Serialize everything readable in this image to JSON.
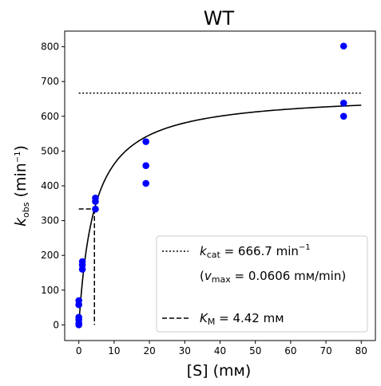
{
  "chart_data": {
    "type": "scatter",
    "title": "WT",
    "xlabel": "[S] (mм)",
    "ylabel": {
      "main": "k",
      "sub": "obs",
      "unit_open": " (min",
      "unit_sup": "−1",
      "unit_close": ")"
    },
    "xlim": [
      -4,
      84
    ],
    "ylim": [
      -45,
      845
    ],
    "x_ticks": [
      0,
      10,
      20,
      30,
      40,
      50,
      60,
      70,
      80
    ],
    "y_ticks": [
      0,
      100,
      200,
      300,
      400,
      500,
      600,
      700,
      800
    ],
    "grid": false,
    "legend_position": "lower right",
    "colors": {
      "points": "#0000ff",
      "lines": "#000000"
    },
    "points": [
      {
        "x": 0,
        "y": 0
      },
      {
        "x": 0,
        "y": 5
      },
      {
        "x": 0,
        "y": 15
      },
      {
        "x": 0,
        "y": 22
      },
      {
        "x": 0,
        "y": 58
      },
      {
        "x": 0,
        "y": 70
      },
      {
        "x": 1,
        "y": 160
      },
      {
        "x": 1,
        "y": 172
      },
      {
        "x": 1,
        "y": 182
      },
      {
        "x": 4.7,
        "y": 333
      },
      {
        "x": 4.7,
        "y": 355
      },
      {
        "x": 4.7,
        "y": 365
      },
      {
        "x": 19,
        "y": 407
      },
      {
        "x": 19,
        "y": 458
      },
      {
        "x": 19,
        "y": 527
      },
      {
        "x": 75,
        "y": 600
      },
      {
        "x": 75,
        "y": 638
      },
      {
        "x": 75,
        "y": 802
      }
    ],
    "fit": {
      "kcat": 666.7,
      "km": 4.42,
      "x_range": [
        0,
        80
      ]
    },
    "legend": [
      {
        "style": "dotted",
        "label_main": "k",
        "label_sub": "cat",
        "label_rest": " = 666.7 min",
        "label_sup": "−1"
      },
      {
        "style": "none",
        "label_open": "(",
        "label_main": "v",
        "label_sub": "max",
        "label_rest": " = 0.0606 mм/min)"
      },
      {
        "style": "dashed",
        "label_main": "K",
        "label_sub": "M",
        "label_rest": " = 4.42 mм"
      }
    ]
  }
}
